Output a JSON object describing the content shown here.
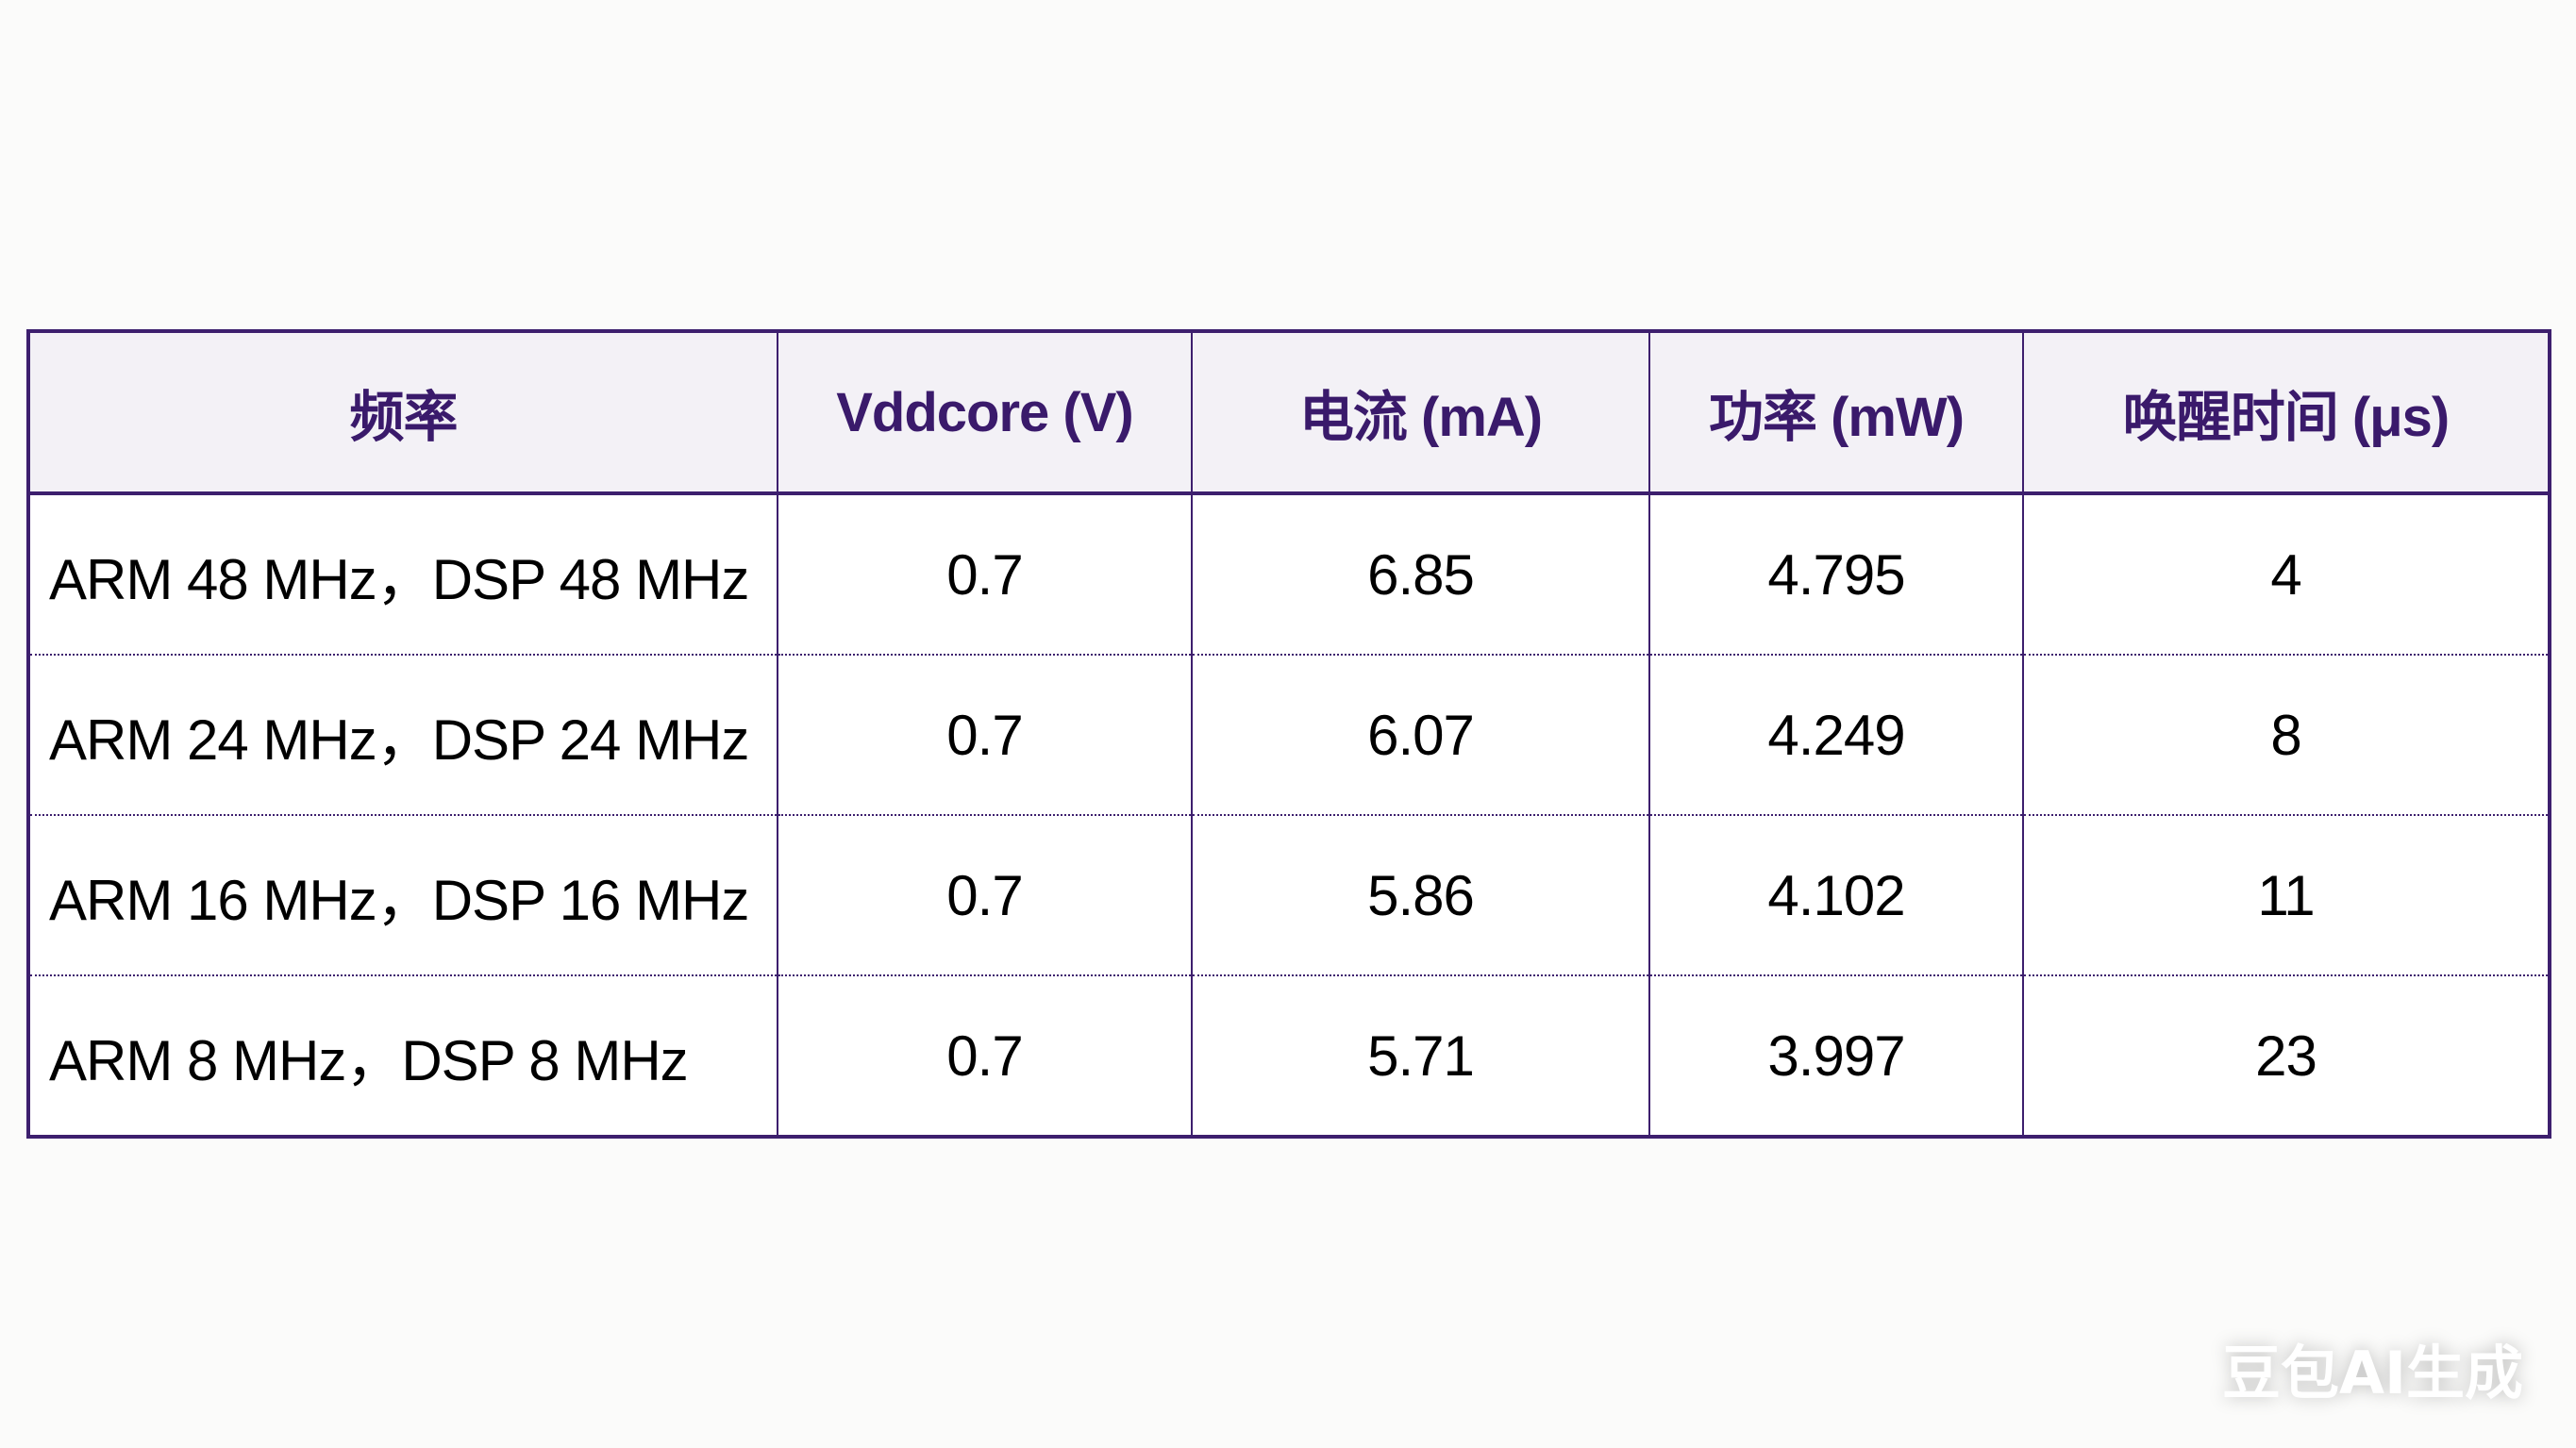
{
  "table": {
    "headers": [
      "频率",
      "Vddcore (V)",
      "电流 (mA)",
      "功率 (mW)",
      "唤醒时间 (μs)"
    ],
    "rows": [
      [
        "ARM 48 MHz，DSP 48 MHz",
        "0.7",
        "6.85",
        "4.795",
        "4"
      ],
      [
        "ARM 24 MHz，DSP 24 MHz",
        "0.7",
        "6.07",
        "4.249",
        "8"
      ],
      [
        "ARM 16 MHz，DSP 16 MHz",
        "0.7",
        "5.86",
        "4.102",
        "11"
      ],
      [
        "ARM 8 MHz，DSP 8 MHz",
        "0.7",
        "5.71",
        "3.997",
        "23"
      ]
    ]
  },
  "watermark": "豆包AI生成",
  "colors": {
    "border": "#3d1f6e",
    "header_text": "#3a1a6b",
    "header_bg": "#f3f1f6"
  }
}
